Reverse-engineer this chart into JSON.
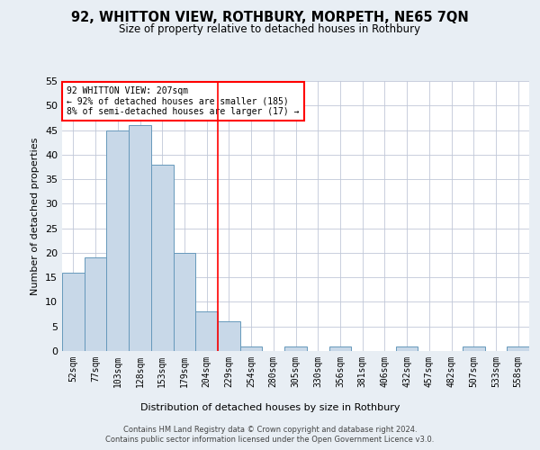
{
  "title1": "92, WHITTON VIEW, ROTHBURY, MORPETH, NE65 7QN",
  "title2": "Size of property relative to detached houses in Rothbury",
  "xlabel": "Distribution of detached houses by size in Rothbury",
  "ylabel": "Number of detached properties",
  "bar_labels": [
    "52sqm",
    "77sqm",
    "103sqm",
    "128sqm",
    "153sqm",
    "179sqm",
    "204sqm",
    "229sqm",
    "254sqm",
    "280sqm",
    "305sqm",
    "330sqm",
    "356sqm",
    "381sqm",
    "406sqm",
    "432sqm",
    "457sqm",
    "482sqm",
    "507sqm",
    "533sqm",
    "558sqm"
  ],
  "bar_values": [
    16,
    19,
    45,
    46,
    38,
    20,
    8,
    6,
    1,
    0,
    1,
    0,
    1,
    0,
    0,
    1,
    0,
    0,
    1,
    0,
    1
  ],
  "bar_color": "#c8d8e8",
  "bar_edge_color": "#6699bb",
  "ylim": [
    0,
    55
  ],
  "yticks": [
    0,
    5,
    10,
    15,
    20,
    25,
    30,
    35,
    40,
    45,
    50,
    55
  ],
  "redline_x": 6.5,
  "annotation_line1": "92 WHITTON VIEW: 207sqm",
  "annotation_line2": "← 92% of detached houses are smaller (185)",
  "annotation_line3": "8% of semi-detached houses are larger (17) →",
  "footer1": "Contains HM Land Registry data © Crown copyright and database right 2024.",
  "footer2": "Contains public sector information licensed under the Open Government Licence v3.0.",
  "bg_color": "#e8eef4",
  "plot_bg_color": "#ffffff",
  "grid_color": "#c0c8d8"
}
